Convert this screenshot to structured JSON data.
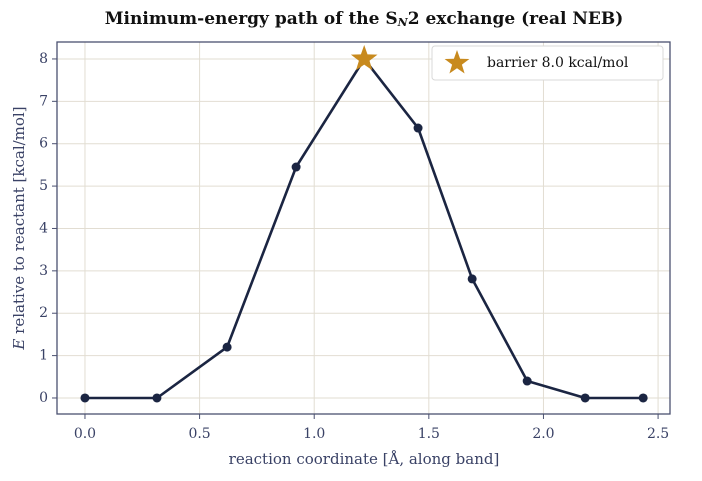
{
  "chart_data": {
    "type": "line",
    "title": [
      "Minimum-energy path of the S",
      "N",
      "2 exchange (real NEB)"
    ],
    "xlabel": "reaction coordinate  [Å, along band]",
    "ylabel": [
      "E",
      " relative to reactant  [kcal/mol]"
    ],
    "series": [
      {
        "color": "#1b2542",
        "x": [
          0,
          0.314,
          0.62,
          0.921,
          1.218,
          1.453,
          1.689,
          1.929,
          2.182,
          2.435
        ],
        "values": [
          0,
          0,
          1.2,
          5.45,
          8.0,
          6.37,
          2.81,
          0.4,
          0,
          0
        ]
      },
      {
        "name": "barrier 8.0 kcal/mol",
        "color": "#c88a1e",
        "marker": "star",
        "x": [
          1.218
        ],
        "values": [
          8.0
        ]
      }
    ],
    "xlim": [
      -0.122,
      2.552
    ],
    "ylim": [
      -0.378,
      8.4
    ],
    "xticks": [
      {
        "value": 0,
        "label": "0.0"
      },
      0.5,
      {
        "value": 1,
        "label": "1.0"
      },
      1.5,
      {
        "value": 2,
        "label": "2.0"
      },
      2.5
    ],
    "yticks": [
      0,
      1,
      2,
      3,
      4,
      5,
      6,
      7,
      8
    ],
    "grid": true,
    "legend": "upper right"
  }
}
